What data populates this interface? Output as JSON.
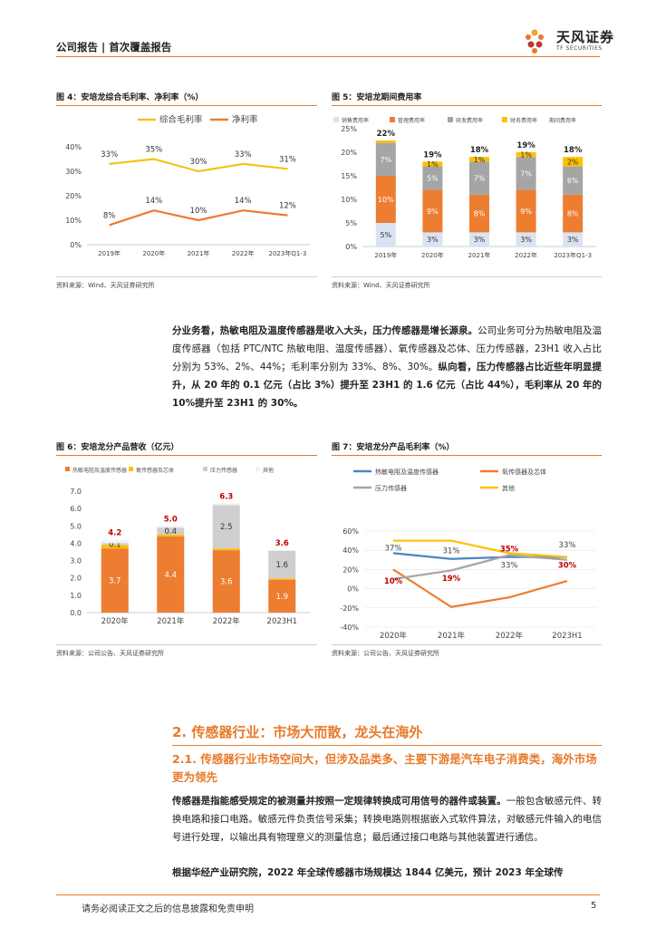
{
  "header": {
    "left": "公司报告 | 首次覆盖报告",
    "logo_cn": "天风证券",
    "logo_en": "TF SECURITIES",
    "logo_colors": [
      "#e8792a",
      "#c0392b",
      "#f1a52b"
    ]
  },
  "fig4": {
    "title": "图 4：安培龙综合毛利率、净利率（%）",
    "source": "资料来源：Wind、天风证券研究所"
  },
  "fig5": {
    "title": "图 5：安培龙期间费用率",
    "source": "资料来源：Wind、天风证券研究所"
  },
  "fig6": {
    "title": "图 6：安培龙分产品营收（亿元）",
    "source": "资料来源：公司公告、天风证券研究所"
  },
  "fig7": {
    "title": "图 7：安培龙分产品毛利率（%）",
    "source": "资料来源：公司公告、天风证券研究所"
  },
  "para1": {
    "b1": "分业务看，热敏电阻及温度传感器是收入大头，压力传感器是增长源泉。",
    "t1": "公司业务可分为热敏电阻及温度传感器（包括 PTC/NTC 热敏电阻、温度传感器）、氧传感器及芯体、压力传感器，23H1 收入占比分别为 53%、2%、44%；毛利率分别为 33%、8%、30%。",
    "b2": "纵向看，压力传感器占比近些年明显提升，从 20 年的 0.1 亿元（占比 3%）提升至 23H1 的 1.6 亿元（占比 44%），毛利率从 20 年的 10%提升至 23H1 的 30%。"
  },
  "section": {
    "h2": "2. 传感器行业：市场大而散，龙头在海外",
    "h3": "2.1. 传感器行业市场空间大，但涉及品类多、主要下游是汽车电子消费类，海外市场更为领先"
  },
  "para2": {
    "b1": "传感器是指能感受规定的被测量并按照一定规律转换成可用信号的器件或装置。",
    "t1": "一般包含敏感元件、转换电路和接口电路。敏感元件负责信号采集；转换电路则根据嵌入式软件算法，对敏感元件输入的电信号进行处理，以输出具有物理意义的测量信息；最后通过接口电路与其他装置进行通信。"
  },
  "para3": {
    "b1": "根据华经产业研究院，2022 年全球传感器市场规模达 1844 亿美元，预计 2023 年全球传"
  },
  "footer": {
    "disclaimer": "请务必阅读正文之后的信息披露和免责申明",
    "page": "5"
  },
  "chart_data": [
    {
      "type": "line",
      "categories": [
        "2019年",
        "2020年",
        "2021年",
        "2022年",
        "2023年Q1-3"
      ],
      "series": [
        {
          "name": "综合毛利率",
          "color": "#f5c216",
          "values": [
            33,
            35,
            30,
            33,
            31
          ]
        },
        {
          "name": "净利率",
          "color": "#ed7d31",
          "values": [
            8,
            14,
            10,
            14,
            12
          ]
        }
      ],
      "yticks": [
        "0%",
        "10%",
        "20%",
        "30%",
        "40%"
      ],
      "ylim": [
        0,
        40
      ],
      "legend": "top"
    },
    {
      "type": "bar",
      "stacked": true,
      "categories": [
        "2019年",
        "2020年",
        "2021年",
        "2022年",
        "2023年Q1-3"
      ],
      "series": [
        {
          "name": "销售费用率",
          "color": "#dae3f3",
          "values": [
            5,
            3,
            3,
            3,
            3
          ]
        },
        {
          "name": "管理费用率",
          "color": "#ed7d31",
          "values": [
            10,
            9,
            8,
            9,
            8
          ]
        },
        {
          "name": "研发费用率",
          "color": "#a5a5a5",
          "values": [
            7,
            5,
            7,
            7,
            6
          ]
        },
        {
          "name": "财务费用率",
          "color": "#ffc000",
          "values": [
            0.5,
            1,
            1,
            1,
            2
          ]
        }
      ],
      "inner_labels": [
        [
          "5%",
          "10%",
          "7%",
          ""
        ],
        [
          "3%",
          "9%",
          "5%",
          "1%"
        ],
        [
          "3%",
          "8%",
          "7%",
          "1%"
        ],
        [
          "3%",
          "9%",
          "7%",
          "1%"
        ],
        [
          "3%",
          "8%",
          "6%",
          "2%"
        ]
      ],
      "total_label_name": "期间费用率",
      "totals": [
        "22%",
        "19%",
        "18%",
        "19%",
        "18%"
      ],
      "yticks": [
        "0%",
        "5%",
        "10%",
        "15%",
        "20%",
        "25%"
      ],
      "ylim": [
        0,
        25
      ],
      "legend": "top"
    },
    {
      "type": "bar",
      "stacked": true,
      "categories": [
        "2020年",
        "2021年",
        "2022年",
        "2023H1"
      ],
      "series": [
        {
          "name": "热敏电阻及温度传感器",
          "color": "#ed7d31",
          "values": [
            3.7,
            4.4,
            3.6,
            1.9
          ]
        },
        {
          "name": "氧传感器及芯体",
          "color": "#ffc000",
          "values": [
            0.2,
            0.1,
            0.1,
            0.07
          ]
        },
        {
          "name": "压力传感器",
          "color": "#d0cece",
          "values": [
            0.1,
            0.4,
            2.5,
            1.6
          ]
        },
        {
          "name": "其他",
          "color": "#f2f2f2",
          "values": [
            0.2,
            0.1,
            0.1,
            0.03
          ]
        }
      ],
      "inner_labels": [
        [
          "3.7",
          "",
          "0.1",
          ""
        ],
        [
          "4.4",
          "",
          "0.4",
          ""
        ],
        [
          "3.6",
          "",
          "2.5",
          ""
        ],
        [
          "1.9",
          "",
          "1.6",
          ""
        ]
      ],
      "totals": [
        "4.2",
        "5.0",
        "6.3",
        "3.6"
      ],
      "yticks": [
        "0.0",
        "1.0",
        "2.0",
        "3.0",
        "4.0",
        "5.0",
        "6.0",
        "7.0"
      ],
      "ylim": [
        0,
        7
      ],
      "legend": "top"
    },
    {
      "type": "line",
      "categories": [
        "2020年",
        "2021年",
        "2022年",
        "2023H1"
      ],
      "series": [
        {
          "name": "热敏电阻及温度传感器",
          "color": "#4a86c5",
          "values": [
            37,
            31,
            33,
            33
          ]
        },
        {
          "name": "氧传感器及芯体",
          "color": "#ed7d31",
          "values": [
            20,
            -19,
            -9,
            8
          ]
        },
        {
          "name": "压力传感器",
          "color": "#a5a5a5",
          "values": [
            10,
            19,
            35,
            30
          ]
        },
        {
          "name": "其他",
          "color": "#ffc000",
          "values": [
            50,
            50,
            37,
            33
          ]
        }
      ],
      "point_labels": [
        {
          "text": "37%",
          "color": "#444"
        },
        {
          "text": "31%",
          "color": "#444"
        },
        {
          "text": "33%",
          "color": "#444"
        },
        {
          "text": "33%",
          "color": "#444"
        },
        {
          "text": "10%",
          "color": "#c00000"
        },
        {
          "text": "19%",
          "color": "#c00000"
        },
        {
          "text": "35%",
          "color": "#c00000"
        },
        {
          "text": "30%",
          "color": "#c00000"
        }
      ],
      "yticks": [
        "-40%",
        "-20%",
        "0%",
        "20%",
        "40%",
        "60%"
      ],
      "ylim": [
        -40,
        60
      ],
      "legend": "top"
    }
  ]
}
